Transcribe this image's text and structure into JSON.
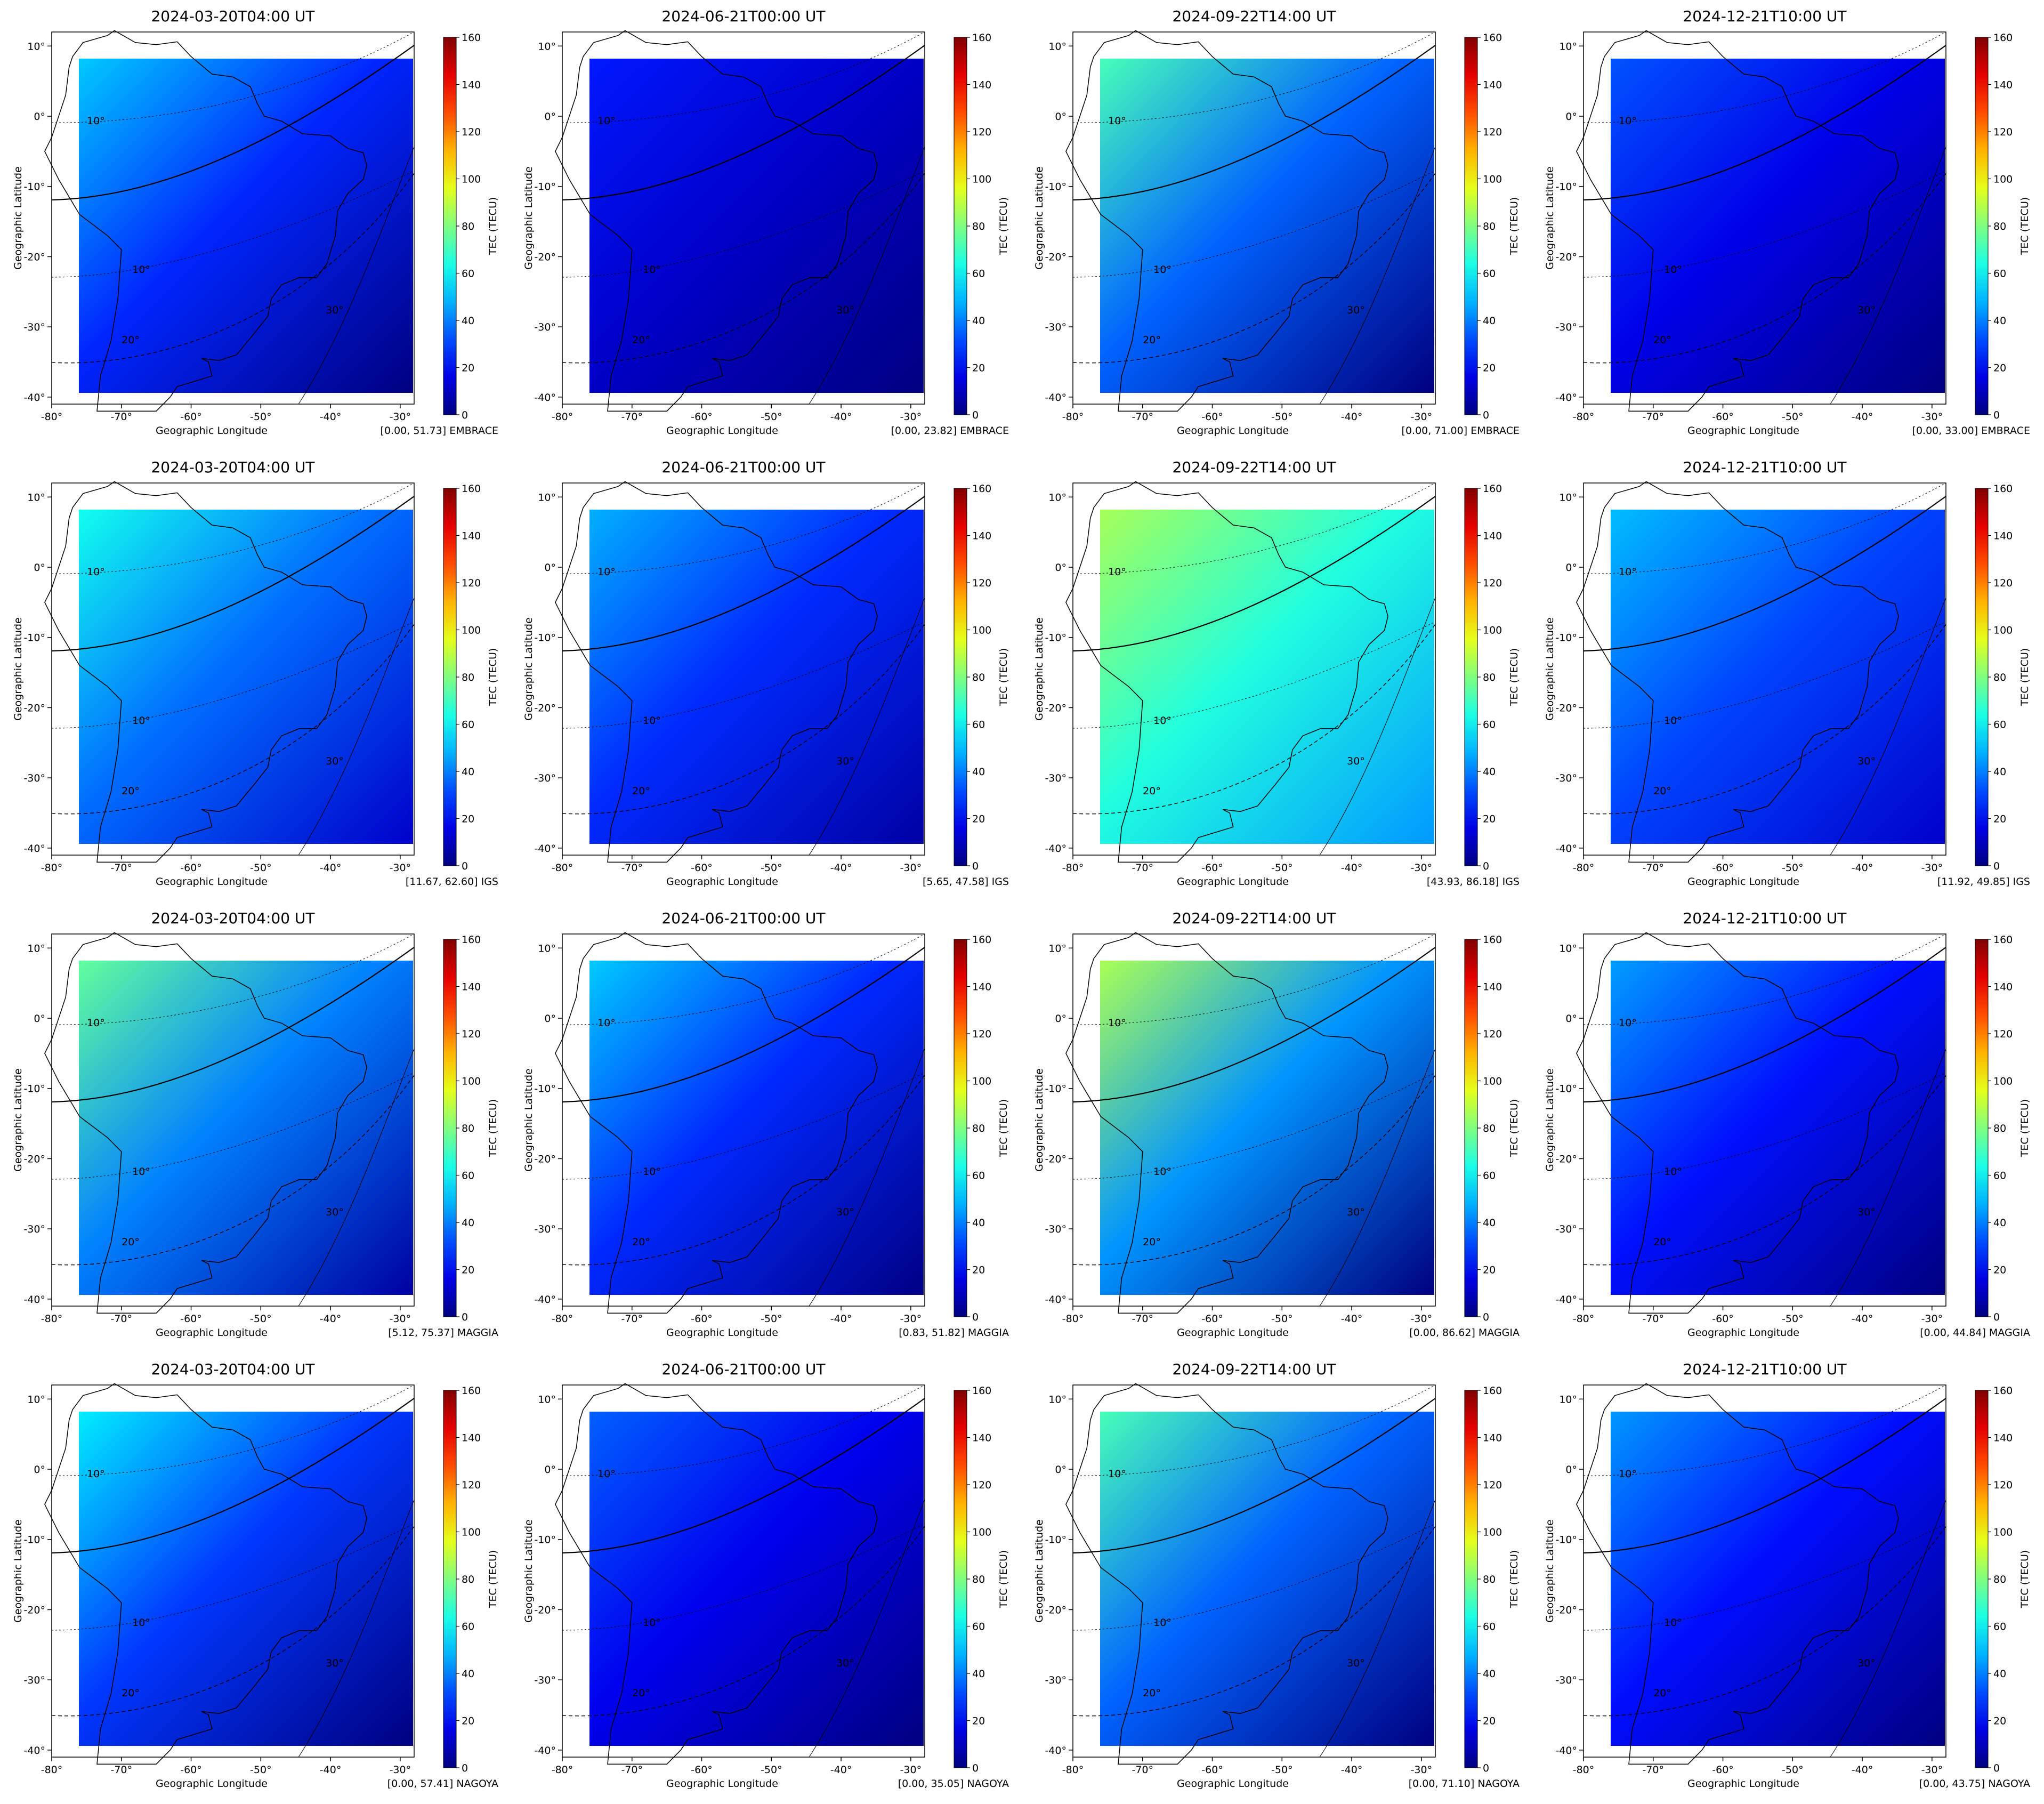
{
  "figure": {
    "xlabel": "Geographic Longitude",
    "ylabel": "Geographic Latitude",
    "colorbar_label": "TEC (TECU)",
    "colorbar_ticks": [
      "0",
      "20",
      "40",
      "60",
      "80",
      "100",
      "120",
      "140",
      "160"
    ],
    "x_ticks": [
      "-80°",
      "-70°",
      "-60°",
      "-50°",
      "-40°",
      "-30°"
    ],
    "y_ticks": [
      "10°",
      "0°",
      "-10°",
      "-20°",
      "-30°",
      "-40°"
    ],
    "contour_labels": [
      "10°",
      "10°",
      "20°",
      "30°"
    ],
    "colormap": "jet",
    "colors": {
      "outline": "#000000",
      "background": "#ffffff"
    }
  },
  "chart_data": [
    {
      "type": "heatmap",
      "title": "2024-03-20T04:00 UT",
      "source": "EMBRACE",
      "range_text": "[0.00, 51.73]",
      "vmin": 0.0,
      "vmax": 51.73,
      "xlim": [
        -80,
        -28
      ],
      "ylim": [
        -41,
        12
      ],
      "clim": [
        0,
        160
      ]
    },
    {
      "type": "heatmap",
      "title": "2024-06-21T00:00 UT",
      "source": "EMBRACE",
      "range_text": "[0.00, 23.82]",
      "vmin": 0.0,
      "vmax": 23.82,
      "xlim": [
        -80,
        -28
      ],
      "ylim": [
        -41,
        12
      ],
      "clim": [
        0,
        160
      ]
    },
    {
      "type": "heatmap",
      "title": "2024-09-22T14:00 UT",
      "source": "EMBRACE",
      "range_text": "[0.00, 71.00]",
      "vmin": 0.0,
      "vmax": 71.0,
      "xlim": [
        -80,
        -28
      ],
      "ylim": [
        -41,
        12
      ],
      "clim": [
        0,
        160
      ]
    },
    {
      "type": "heatmap",
      "title": "2024-12-21T10:00 UT",
      "source": "EMBRACE",
      "range_text": "[0.00, 33.00]",
      "vmin": 0.0,
      "vmax": 33.0,
      "xlim": [
        -80,
        -28
      ],
      "ylim": [
        -41,
        12
      ],
      "clim": [
        0,
        160
      ]
    },
    {
      "type": "heatmap",
      "title": "2024-03-20T04:00 UT",
      "source": "IGS",
      "range_text": "[11.67, 62.60]",
      "vmin": 11.67,
      "vmax": 62.6,
      "xlim": [
        -80,
        -28
      ],
      "ylim": [
        -41,
        12
      ],
      "clim": [
        0,
        160
      ]
    },
    {
      "type": "heatmap",
      "title": "2024-06-21T00:00 UT",
      "source": "IGS",
      "range_text": "[5.65, 47.58]",
      "vmin": 5.65,
      "vmax": 47.58,
      "xlim": [
        -80,
        -28
      ],
      "ylim": [
        -41,
        12
      ],
      "clim": [
        0,
        160
      ]
    },
    {
      "type": "heatmap",
      "title": "2024-09-22T14:00 UT",
      "source": "IGS",
      "range_text": "[43.93, 86.18]",
      "vmin": 43.93,
      "vmax": 86.18,
      "xlim": [
        -80,
        -28
      ],
      "ylim": [
        -41,
        12
      ],
      "clim": [
        0,
        160
      ]
    },
    {
      "type": "heatmap",
      "title": "2024-12-21T10:00 UT",
      "source": "IGS",
      "range_text": "[11.92, 49.85]",
      "vmin": 11.92,
      "vmax": 49.85,
      "xlim": [
        -80,
        -28
      ],
      "ylim": [
        -41,
        12
      ],
      "clim": [
        0,
        160
      ]
    },
    {
      "type": "heatmap",
      "title": "2024-03-20T04:00 UT",
      "source": "MAGGIA",
      "range_text": "[5.12, 75.37]",
      "vmin": 5.12,
      "vmax": 75.37,
      "xlim": [
        -80,
        -28
      ],
      "ylim": [
        -41,
        12
      ],
      "clim": [
        0,
        160
      ]
    },
    {
      "type": "heatmap",
      "title": "2024-06-21T00:00 UT",
      "source": "MAGGIA",
      "range_text": "[0.83, 51.82]",
      "vmin": 0.83,
      "vmax": 51.82,
      "xlim": [
        -80,
        -28
      ],
      "ylim": [
        -41,
        12
      ],
      "clim": [
        0,
        160
      ]
    },
    {
      "type": "heatmap",
      "title": "2024-09-22T14:00 UT",
      "source": "MAGGIA",
      "range_text": "[0.00, 86.62]",
      "vmin": 0.0,
      "vmax": 86.62,
      "xlim": [
        -80,
        -28
      ],
      "ylim": [
        -41,
        12
      ],
      "clim": [
        0,
        160
      ]
    },
    {
      "type": "heatmap",
      "title": "2024-12-21T10:00 UT",
      "source": "MAGGIA",
      "range_text": "[0.00, 44.84]",
      "vmin": 0.0,
      "vmax": 44.84,
      "xlim": [
        -80,
        -28
      ],
      "ylim": [
        -41,
        12
      ],
      "clim": [
        0,
        160
      ]
    },
    {
      "type": "heatmap",
      "title": "2024-03-20T04:00 UT",
      "source": "NAGOYA",
      "range_text": "[0.00, 57.41]",
      "vmin": 0.0,
      "vmax": 57.41,
      "xlim": [
        -80,
        -28
      ],
      "ylim": [
        -41,
        12
      ],
      "clim": [
        0,
        160
      ]
    },
    {
      "type": "heatmap",
      "title": "2024-06-21T00:00 UT",
      "source": "NAGOYA",
      "range_text": "[0.00, 35.05]",
      "vmin": 0.0,
      "vmax": 35.05,
      "xlim": [
        -80,
        -28
      ],
      "ylim": [
        -41,
        12
      ],
      "clim": [
        0,
        160
      ]
    },
    {
      "type": "heatmap",
      "title": "2024-09-22T14:00 UT",
      "source": "NAGOYA",
      "range_text": "[0.00, 71.10]",
      "vmin": 0.0,
      "vmax": 71.1,
      "xlim": [
        -80,
        -28
      ],
      "ylim": [
        -41,
        12
      ],
      "clim": [
        0,
        160
      ]
    },
    {
      "type": "heatmap",
      "title": "2024-12-21T10:00 UT",
      "source": "NAGOYA",
      "range_text": "[0.00, 43.75]",
      "vmin": 0.0,
      "vmax": 43.75,
      "xlim": [
        -80,
        -28
      ],
      "ylim": [
        -41,
        12
      ],
      "clim": [
        0,
        160
      ]
    }
  ]
}
